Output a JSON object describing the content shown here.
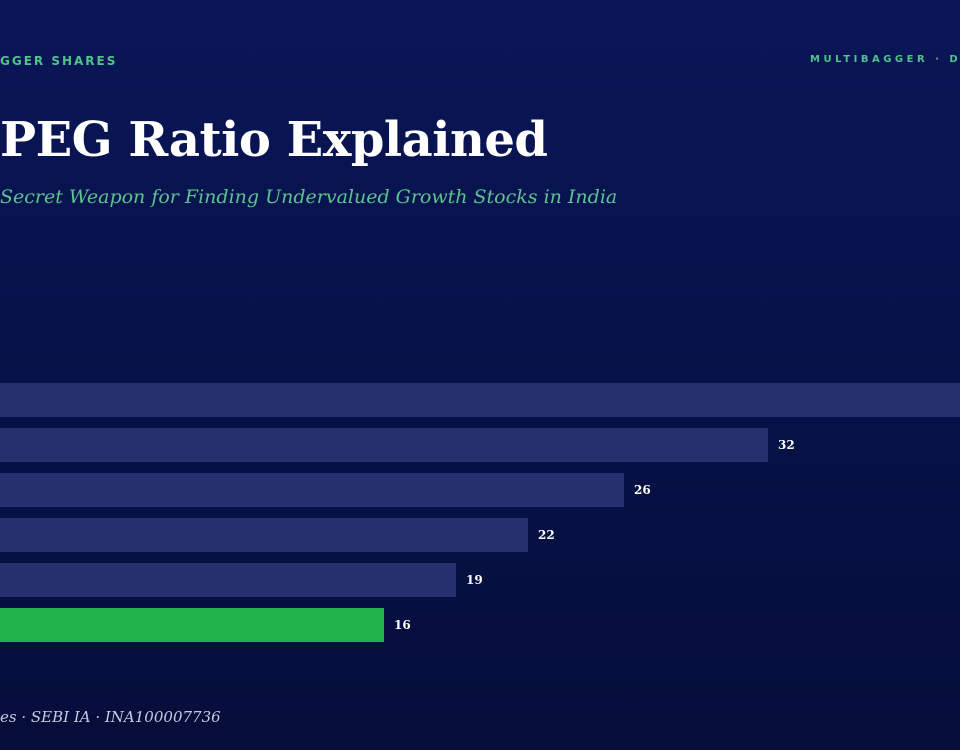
{
  "header": {
    "left_label": "GGER SHARES",
    "right_label": "MULTIBAGGER · D"
  },
  "title": "PEG Ratio Explained",
  "subtitle": "Secret Weapon for Finding Undervalued Growth Stocks in India",
  "footer": "es · SEBI IA · INA100007736",
  "colors": {
    "bar_default": "#27306e",
    "bar_highlight": "#22b24c",
    "value_label": "#ffffff"
  },
  "chart_data": {
    "type": "bar",
    "orientation": "horizontal",
    "values": [
      40,
      32,
      26,
      22,
      19,
      16
    ],
    "data_labels": [
      "",
      "32",
      "26",
      "22",
      "19",
      "16"
    ],
    "highlight_index": 5,
    "xlim": [
      0,
      40
    ]
  }
}
